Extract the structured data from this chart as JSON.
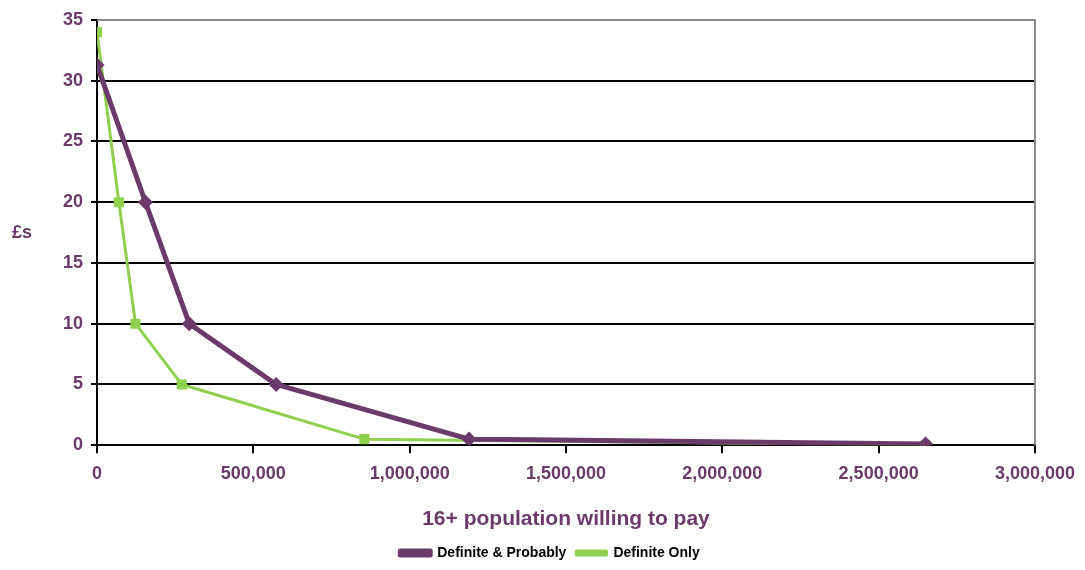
{
  "chart_data": {
    "type": "line",
    "xlabel": "16+ population willing to pay",
    "ylabel": "£s",
    "xlim": [
      0,
      3000000
    ],
    "xticks": [
      0,
      {
        "value": 500000,
        "label": "500,000"
      },
      {
        "value": 1000000,
        "label": "1,000,000"
      },
      {
        "value": 1500000,
        "label": "1,500,000"
      },
      {
        "value": 2000000,
        "label": "2,000,000"
      },
      {
        "value": 2500000,
        "label": "2,500,000"
      },
      {
        "value": 3000000,
        "label": "3,000,000"
      }
    ],
    "ylim": [
      0,
      35
    ],
    "yticks": [
      0,
      5,
      10,
      15,
      20,
      25,
      30,
      35
    ],
    "grid": "y",
    "legend": "bottom",
    "series": [
      {
        "name": "Definite & Probably",
        "color": "#6b3a6b",
        "marker": "diamond",
        "x": [
          0,
          155000,
          295000,
          573000,
          1190000,
          2650000
        ],
        "values": [
          31.3,
          20,
          10,
          5,
          0.5,
          0.1
        ]
      },
      {
        "name": "Definite Only",
        "color": "#8fd14f",
        "marker": "square",
        "x": [
          0,
          70000,
          123000,
          271000,
          855000,
          2650000
        ],
        "values": [
          34,
          20,
          10,
          5,
          0.5,
          0
        ]
      }
    ]
  }
}
